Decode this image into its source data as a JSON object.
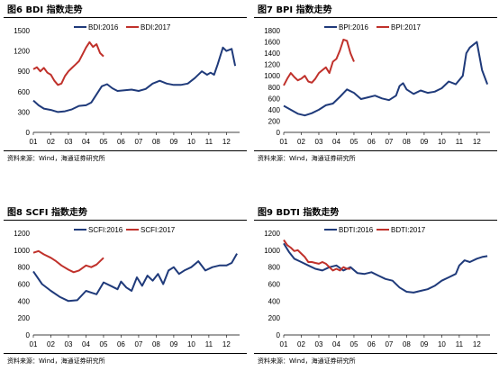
{
  "colors": {
    "s2016": "#1f3a7a",
    "s2017": "#c0312b"
  },
  "source_text": "资料来源：Wind，海通证券研究所",
  "chart_data": [
    {
      "type": "line",
      "title": "图6  BDI 指数走势",
      "x_ticks": [
        "01",
        "02",
        "03",
        "04",
        "05",
        "06",
        "07",
        "08",
        "09",
        "10",
        "11",
        "12"
      ],
      "ylim": [
        0,
        1500
      ],
      "y_ticks": [
        0,
        300,
        600,
        900,
        1200,
        1500
      ],
      "series": [
        {
          "name": "BDI:2016",
          "color_key": "s2016",
          "x": [
            1.0,
            1.3,
            1.6,
            2.0,
            2.4,
            2.8,
            3.2,
            3.6,
            4.0,
            4.3,
            4.6,
            4.9,
            5.2,
            5.5,
            5.8,
            6.2,
            6.6,
            7.0,
            7.4,
            7.8,
            8.2,
            8.6,
            9.0,
            9.4,
            9.8,
            10.2,
            10.6,
            10.9,
            11.1,
            11.3,
            11.5,
            11.8,
            12.0,
            12.3,
            12.5
          ],
          "y": [
            470,
            400,
            350,
            330,
            300,
            310,
            340,
            390,
            400,
            440,
            560,
            680,
            710,
            650,
            610,
            620,
            630,
            610,
            640,
            720,
            760,
            720,
            700,
            700,
            720,
            800,
            900,
            850,
            880,
            850,
            1000,
            1250,
            1200,
            1230,
            980
          ]
        },
        {
          "name": "BDI:2017",
          "color_key": "s2017",
          "x": [
            1.0,
            1.2,
            1.4,
            1.6,
            1.8,
            2.0,
            2.2,
            2.4,
            2.6,
            2.8,
            3.0,
            3.2,
            3.4,
            3.6,
            3.8,
            4.0,
            4.2,
            4.4,
            4.6,
            4.8,
            5.0
          ],
          "y": [
            930,
            960,
            900,
            950,
            880,
            850,
            760,
            700,
            720,
            830,
            900,
            950,
            1000,
            1050,
            1150,
            1250,
            1330,
            1260,
            1300,
            1170,
            1120
          ]
        }
      ]
    },
    {
      "type": "line",
      "title": "图7  BPI 指数走势",
      "x_ticks": [
        "01",
        "02",
        "03",
        "04",
        "05",
        "06",
        "07",
        "08",
        "09",
        "10",
        "11",
        "12"
      ],
      "ylim": [
        0,
        1800
      ],
      "y_ticks": [
        0,
        200,
        400,
        600,
        800,
        1000,
        1200,
        1400,
        1600,
        1800
      ],
      "series": [
        {
          "name": "BPI:2016",
          "color_key": "s2016",
          "x": [
            1.0,
            1.4,
            1.8,
            2.2,
            2.6,
            3.0,
            3.4,
            3.8,
            4.2,
            4.6,
            5.0,
            5.4,
            5.8,
            6.2,
            6.6,
            7.0,
            7.4,
            7.6,
            7.8,
            8.0,
            8.4,
            8.8,
            9.2,
            9.6,
            10.0,
            10.4,
            10.8,
            11.2,
            11.4,
            11.6,
            11.8,
            12.0,
            12.3,
            12.6
          ],
          "y": [
            470,
            400,
            330,
            300,
            340,
            400,
            480,
            510,
            630,
            760,
            700,
            590,
            620,
            650,
            600,
            570,
            650,
            820,
            870,
            760,
            680,
            740,
            700,
            720,
            780,
            900,
            850,
            1000,
            1400,
            1500,
            1550,
            1600,
            1100,
            850
          ]
        },
        {
          "name": "BPI:2017",
          "color_key": "s2017",
          "x": [
            1.0,
            1.2,
            1.4,
            1.6,
            1.8,
            2.0,
            2.2,
            2.4,
            2.6,
            2.8,
            3.0,
            3.2,
            3.4,
            3.6,
            3.8,
            4.0,
            4.2,
            4.4,
            4.6,
            4.8,
            5.0
          ],
          "y": [
            830,
            950,
            1050,
            980,
            920,
            950,
            1000,
            900,
            880,
            950,
            1050,
            1100,
            1150,
            1050,
            1250,
            1300,
            1450,
            1640,
            1620,
            1400,
            1250
          ]
        }
      ]
    },
    {
      "type": "line",
      "title": "图8  SCFI 指数走势",
      "x_ticks": [
        "01",
        "02",
        "03",
        "04",
        "05",
        "06",
        "07",
        "08",
        "09",
        "10",
        "11",
        "12"
      ],
      "ylim": [
        0,
        1200
      ],
      "y_ticks": [
        0,
        200,
        400,
        600,
        800,
        1000,
        1200
      ],
      "series": [
        {
          "name": "SCFI:2016",
          "color_key": "s2016",
          "x": [
            1.0,
            1.5,
            2.0,
            2.5,
            3.0,
            3.5,
            4.0,
            4.3,
            4.6,
            5.0,
            5.5,
            5.8,
            6.0,
            6.3,
            6.6,
            6.9,
            7.2,
            7.5,
            7.8,
            8.1,
            8.4,
            8.7,
            9.0,
            9.3,
            9.6,
            10.0,
            10.4,
            10.8,
            11.2,
            11.6,
            12.0,
            12.3,
            12.6
          ],
          "y": [
            750,
            600,
            520,
            450,
            400,
            410,
            520,
            500,
            480,
            620,
            570,
            540,
            630,
            560,
            520,
            680,
            580,
            700,
            640,
            720,
            600,
            760,
            800,
            720,
            760,
            800,
            870,
            760,
            800,
            820,
            820,
            850,
            960
          ]
        },
        {
          "name": "SCFI:2017",
          "color_key": "s2017",
          "x": [
            1.0,
            1.3,
            1.6,
            2.0,
            2.3,
            2.6,
            3.0,
            3.3,
            3.6,
            4.0,
            4.3,
            4.6,
            5.0
          ],
          "y": [
            970,
            990,
            950,
            910,
            870,
            820,
            770,
            740,
            760,
            820,
            800,
            830,
            910
          ]
        }
      ]
    },
    {
      "type": "line",
      "title": "图9  BDTI 指数走势",
      "x_ticks": [
        "01",
        "02",
        "03",
        "04",
        "05",
        "06",
        "07",
        "08",
        "09",
        "10",
        "11",
        "12"
      ],
      "ylim": [
        0,
        1200
      ],
      "y_ticks": [
        0,
        200,
        400,
        600,
        800,
        1000,
        1200
      ],
      "series": [
        {
          "name": "BDTI:2016",
          "color_key": "s2016",
          "x": [
            1.0,
            1.3,
            1.6,
            2.0,
            2.4,
            2.8,
            3.2,
            3.6,
            4.0,
            4.4,
            4.8,
            5.2,
            5.6,
            6.0,
            6.4,
            6.8,
            7.2,
            7.6,
            8.0,
            8.4,
            8.8,
            9.2,
            9.6,
            10.0,
            10.4,
            10.8,
            11.0,
            11.3,
            11.6,
            12.0,
            12.3,
            12.6
          ],
          "y": [
            1080,
            980,
            900,
            860,
            820,
            780,
            760,
            800,
            820,
            760,
            800,
            730,
            720,
            740,
            700,
            660,
            640,
            560,
            510,
            500,
            520,
            540,
            580,
            640,
            680,
            720,
            820,
            880,
            860,
            900,
            920,
            930
          ]
        },
        {
          "name": "BDTI:2017",
          "color_key": "s2017",
          "x": [
            1.0,
            1.2,
            1.4,
            1.6,
            1.8,
            2.0,
            2.2,
            2.4,
            2.6,
            2.8,
            3.0,
            3.2,
            3.4,
            3.6,
            3.8,
            4.0,
            4.2,
            4.4,
            4.6,
            4.8
          ],
          "y": [
            1120,
            1060,
            1030,
            990,
            1000,
            960,
            920,
            860,
            860,
            850,
            840,
            860,
            840,
            800,
            760,
            780,
            760,
            800,
            780,
            780
          ]
        }
      ]
    }
  ]
}
